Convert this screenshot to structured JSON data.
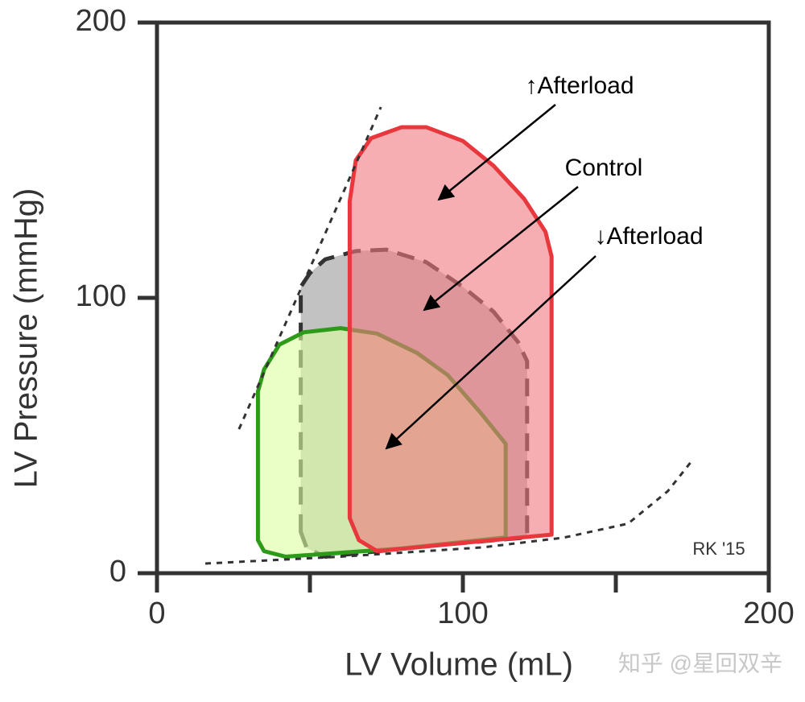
{
  "chart_data": {
    "type": "pv-loop",
    "xlabel": "LV Volume (mL)",
    "ylabel": "LV Pressure (mmHg)",
    "xlim": [
      0,
      200
    ],
    "ylim": [
      0,
      200
    ],
    "xticks": [
      0,
      100,
      200
    ],
    "xminor_ticks": [
      50,
      150
    ],
    "yticks": [
      0,
      100,
      200
    ],
    "series": [
      {
        "name": "Control",
        "color": "#333333",
        "fill": "#9a9a9a",
        "dashed": true,
        "x": [
          47,
          47,
          50,
          55,
          65,
          75,
          88,
          100,
          110,
          118,
          121,
          121,
          90,
          55,
          49
        ],
        "y": [
          15,
          104,
          109,
          114,
          117,
          117.5,
          113,
          104,
          95,
          84,
          77,
          13,
          10,
          6,
          9
        ]
      },
      {
        "name": "↓Afterload",
        "color": "#2e9a1a",
        "fill": "#dcff9e",
        "dashed": false,
        "x": [
          33,
          33,
          35,
          40,
          48,
          60,
          72,
          85,
          95,
          106,
          114,
          114,
          80,
          42,
          35
        ],
        "y": [
          12,
          66,
          74,
          83,
          87.5,
          89,
          87,
          80,
          72,
          58,
          47,
          13,
          9,
          6,
          8
        ]
      },
      {
        "name": "↑Afterload",
        "color": "#e8383d",
        "fill": "#f07880",
        "dashed": false,
        "x": [
          63,
          63,
          65,
          70,
          80,
          88,
          100,
          110,
          120,
          127,
          129,
          129,
          100,
          72,
          66,
          63
        ],
        "y": [
          27,
          135,
          150,
          158,
          162,
          162,
          157,
          148,
          136,
          124,
          115,
          14,
          11,
          8,
          12,
          20
        ]
      }
    ],
    "lines": [
      {
        "x": [
          26.8,
          73.2
        ],
        "y": [
          52.3,
          169.3
        ]
      },
      {
        "x": [
          15.8,
          60,
          106.6,
          132.9,
          154,
          167,
          175
        ],
        "y": [
          3.5,
          6,
          9.4,
          12.9,
          18,
          29.8,
          41
        ]
      }
    ],
    "annotations": [
      "RK '15",
      "知乎 @星回双辛"
    ]
  }
}
